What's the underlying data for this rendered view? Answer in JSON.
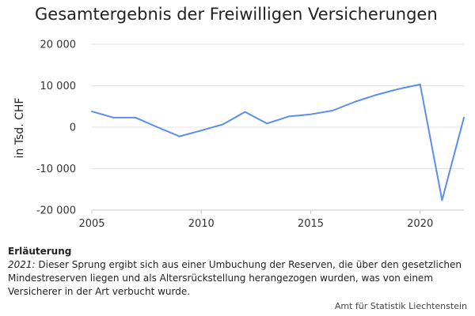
{
  "chart_data": {
    "type": "line",
    "title": "Gesamtergebnis der Freiwilligen Versicherungen",
    "ylabel": "in Tsd. CHF",
    "xlabel": "",
    "ylim": [
      -20000,
      20000
    ],
    "xlim": [
      2005,
      2022
    ],
    "y_ticks": [
      {
        "value": 20000,
        "label": "20 000"
      },
      {
        "value": 10000,
        "label": "10 000"
      },
      {
        "value": 0,
        "label": "0"
      },
      {
        "value": -10000,
        "label": "-10 000"
      },
      {
        "value": -20000,
        "label": "-20 000"
      }
    ],
    "x_ticks": [
      {
        "value": 2005,
        "label": "2005"
      },
      {
        "value": 2010,
        "label": "2010"
      },
      {
        "value": 2015,
        "label": "2015"
      },
      {
        "value": 2020,
        "label": "2020"
      }
    ],
    "grid": "horizontal",
    "line_color": "#5b8def",
    "series": [
      {
        "x": [
          2005,
          2006,
          2007,
          2008,
          2009,
          2010,
          2011,
          2012,
          2013,
          2014,
          2015,
          2016,
          2017,
          2018,
          2019,
          2020,
          2021,
          2022
        ],
        "values": [
          3800,
          2300,
          2300,
          0,
          -2200,
          -800,
          700,
          3700,
          900,
          2600,
          3100,
          4000,
          6100,
          7800,
          9200,
          10300,
          -17600,
          2300
        ]
      }
    ]
  },
  "note": {
    "heading": "Erläuterung",
    "year": "2021:",
    "text": " Dieser Sprung ergibt sich aus einer Umbuchung der Reserven, die über den gesetzlichen Mindestreserven liegen und als Altersrückstellung herangezogen wurden, was von einem Versicherer in der Art verbucht wurde."
  },
  "source": "Amt für Statistik Liechtenstein"
}
